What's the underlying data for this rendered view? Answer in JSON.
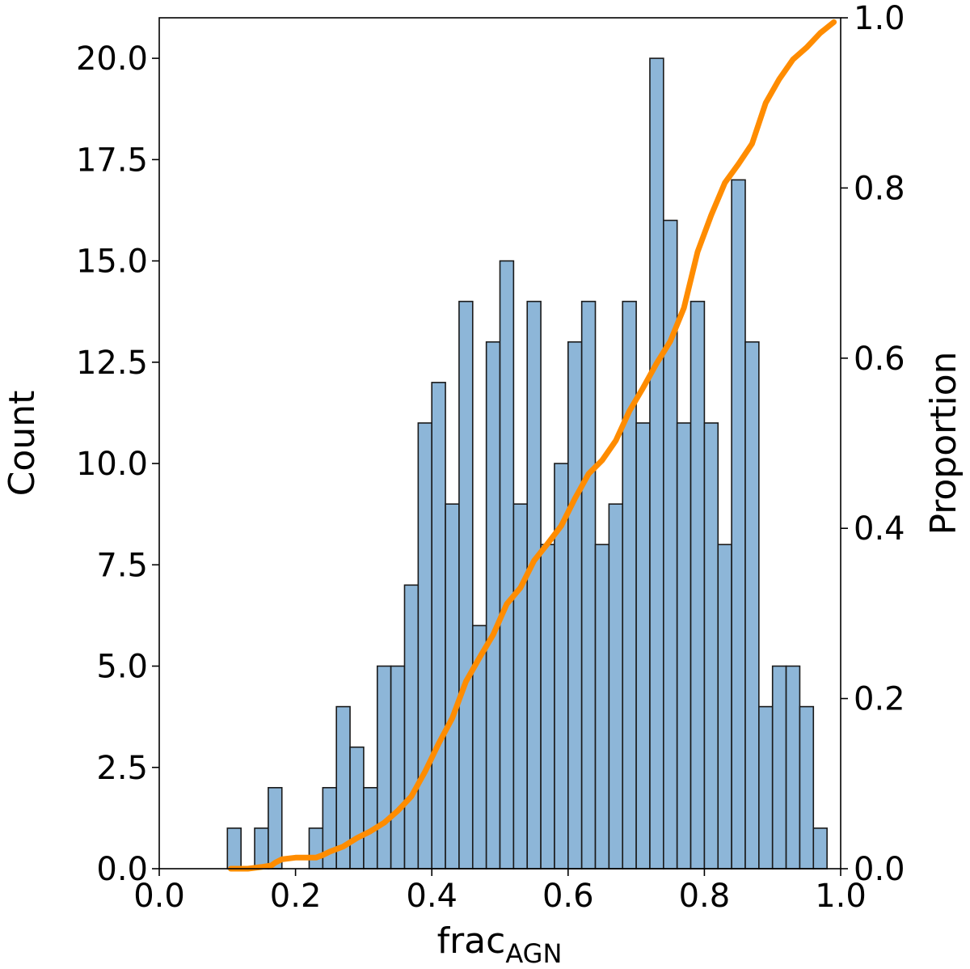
{
  "chart_data": {
    "type": "bar",
    "title": "",
    "xlabel": "frac",
    "xlabel_subscript": "AGN",
    "ylabel": "Count",
    "ylabel_right": "Proportion",
    "xlim": [
      0.0,
      1.0
    ],
    "ylim": [
      0.0,
      21.0
    ],
    "ylim_right": [
      0.0,
      1.0
    ],
    "xticks": [
      "0.0",
      "0.2",
      "0.4",
      "0.6",
      "0.8",
      "1.0"
    ],
    "yticks": [
      "0.0",
      "2.5",
      "5.0",
      "7.5",
      "10.0",
      "12.5",
      "15.0",
      "17.5",
      "20.0"
    ],
    "yticks_right": [
      "0.0",
      "0.2",
      "0.4",
      "0.6",
      "0.8",
      "1.0"
    ],
    "grid": false,
    "legend": "none",
    "bar_color": "#8db6d8",
    "line_color": "#ff8c00",
    "series": [
      {
        "type": "histogram",
        "bin_start": 0.1,
        "bin_width": 0.02,
        "values": [
          1,
          0,
          1,
          2,
          0,
          0,
          1,
          2,
          4,
          3,
          2,
          5,
          5,
          7,
          11,
          12,
          9,
          14,
          6,
          13,
          15,
          9,
          14,
          8,
          10,
          13,
          14,
          8,
          9,
          14,
          11,
          20,
          16,
          11,
          14,
          11,
          8,
          17,
          13,
          4,
          5,
          5,
          4,
          1
        ]
      },
      {
        "type": "line",
        "axis": "right",
        "x": [
          0.105,
          0.13,
          0.15,
          0.165,
          0.17,
          0.18,
          0.2,
          0.23,
          0.24,
          0.25,
          0.27,
          0.29,
          0.31,
          0.33,
          0.35,
          0.37,
          0.39,
          0.41,
          0.43,
          0.45,
          0.47,
          0.49,
          0.51,
          0.53,
          0.55,
          0.57,
          0.59,
          0.61,
          0.63,
          0.65,
          0.67,
          0.69,
          0.71,
          0.73,
          0.75,
          0.77,
          0.79,
          0.81,
          0.83,
          0.85,
          0.87,
          0.89,
          0.91,
          0.93,
          0.95,
          0.97,
          0.99
        ],
        "y": [
          0.0,
          0.0,
          0.002,
          0.004,
          0.007,
          0.011,
          0.013,
          0.013,
          0.016,
          0.02,
          0.026,
          0.036,
          0.044,
          0.054,
          0.068,
          0.085,
          0.114,
          0.147,
          0.177,
          0.22,
          0.248,
          0.275,
          0.311,
          0.33,
          0.362,
          0.382,
          0.403,
          0.435,
          0.464,
          0.48,
          0.503,
          0.538,
          0.565,
          0.594,
          0.62,
          0.659,
          0.725,
          0.768,
          0.806,
          0.828,
          0.852,
          0.9,
          0.928,
          0.951,
          0.965,
          0.982,
          0.995
        ]
      }
    ]
  }
}
